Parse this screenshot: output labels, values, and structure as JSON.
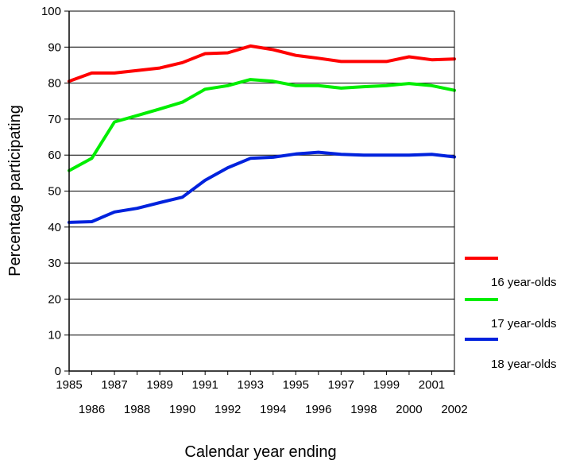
{
  "chart_data": {
    "type": "line",
    "title": "",
    "xlabel": "Calendar  year ending",
    "ylabel": "Percentage participating",
    "ylim": [
      0,
      100
    ],
    "yticks": [
      "0",
      "10",
      "20",
      "30",
      "40",
      "50",
      "60",
      "70",
      "80",
      "90",
      "100"
    ],
    "x": [
      "1985",
      "1986",
      "1987",
      "1988",
      "1989",
      "1990",
      "1991",
      "1992",
      "1993",
      "1994",
      "1995",
      "1996",
      "1997",
      "1998",
      "1999",
      "2000",
      "2001",
      "2002"
    ],
    "grid": true,
    "legend_position": "right",
    "series": [
      {
        "name": "16 year-olds",
        "color": "#ff0000",
        "values": [
          80.5,
          82.8,
          82.8,
          83.5,
          84.2,
          85.7,
          88.2,
          88.4,
          90.3,
          89.3,
          87.7,
          86.9,
          86.0,
          86.0,
          86.0,
          87.3,
          86.5,
          86.7
        ]
      },
      {
        "name": "17 year-olds",
        "color": "#00ee00",
        "values": [
          55.7,
          59.1,
          69.2,
          71.0,
          72.8,
          74.7,
          78.3,
          79.3,
          81.0,
          80.5,
          79.3,
          79.3,
          78.6,
          79.0,
          79.3,
          79.9,
          79.3,
          78.0
        ]
      },
      {
        "name": "18 year-olds",
        "color": "#0022dd",
        "values": [
          41.3,
          41.5,
          44.2,
          45.2,
          46.8,
          48.3,
          53.0,
          56.5,
          59.1,
          59.4,
          60.3,
          60.8,
          60.2,
          60.0,
          60.0,
          60.0,
          60.2,
          59.5
        ]
      }
    ]
  }
}
